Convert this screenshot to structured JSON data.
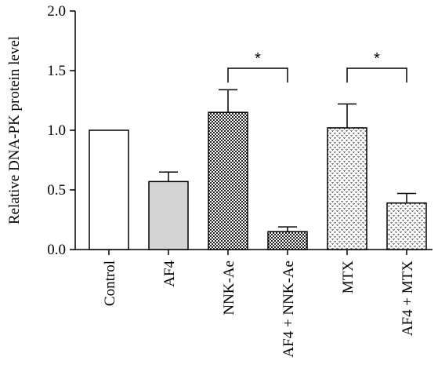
{
  "chart_data": {
    "type": "bar",
    "ylabel": "Relative DNA-PK protein level",
    "xlabel": "",
    "ylim": [
      0,
      2.0
    ],
    "yticks": [
      "0.0",
      "0.5",
      "1.0",
      "1.5",
      "2.0"
    ],
    "categories": [
      "Control",
      "AF4",
      "NNK-Ae",
      "AF4 + NNK-Ae",
      "MTX",
      "AF4 + MTX"
    ],
    "values": [
      1.0,
      0.57,
      1.15,
      0.15,
      1.02,
      0.39
    ],
    "errors": [
      0,
      0.08,
      0.19,
      0.04,
      0.2,
      0.08
    ],
    "bar_fills": [
      "white",
      "light-gray",
      "dark-check",
      "dark-check",
      "light-dots",
      "light-dots"
    ],
    "significance": [
      {
        "from": "NNK-Ae",
        "to": "AF4 + NNK-Ae",
        "label": "*"
      },
      {
        "from": "MTX",
        "to": "AF4 + MTX",
        "label": "*"
      }
    ]
  }
}
